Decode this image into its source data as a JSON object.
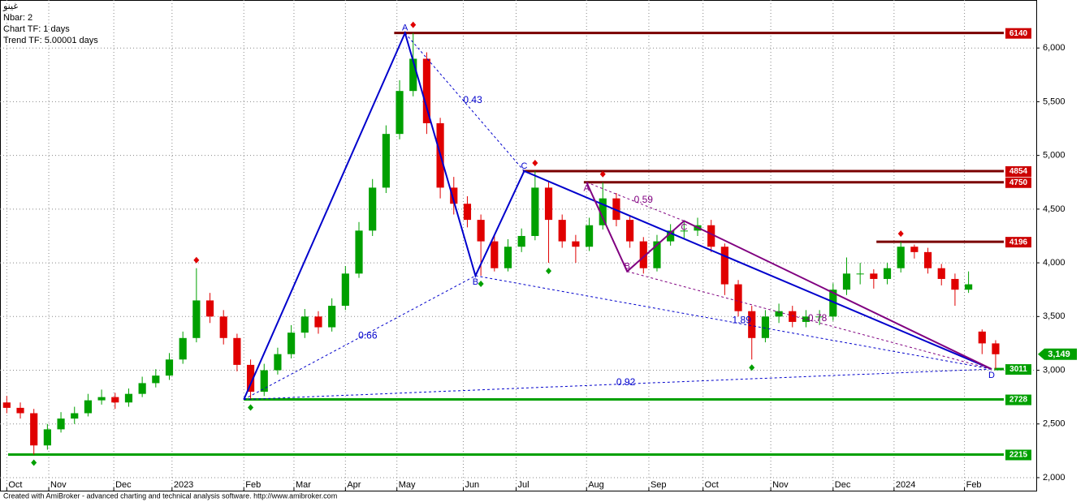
{
  "chart_data": {
    "type": "candlestick",
    "header": [
      "غينو",
      "Nbar: 2",
      "Chart TF: 1 days",
      "Trend TF: 5.00001 days"
    ],
    "footer": "Created with AmiBroker - advanced charting and technical analysis software. http://www.amibroker.com",
    "x": [
      0,
      1,
      2,
      3,
      4,
      5,
      6,
      7,
      8,
      9,
      10,
      11,
      12,
      13,
      14,
      15,
      16,
      17,
      18,
      19,
      20,
      21,
      22,
      23,
      24,
      25,
      26,
      27,
      28,
      29,
      30,
      31,
      32,
      33,
      34,
      35,
      36,
      37,
      38,
      39,
      40,
      41,
      42,
      43,
      44,
      45,
      46,
      47,
      48,
      49,
      50,
      51,
      52,
      53,
      54,
      55,
      56,
      57,
      58,
      59,
      60,
      61,
      62,
      63,
      64,
      65,
      66,
      67,
      68,
      69,
      70,
      71,
      72,
      73
    ],
    "open": [
      2700,
      2650,
      2600,
      2300,
      2450,
      2550,
      2600,
      2720,
      2750,
      2700,
      2780,
      2880,
      2950,
      3100,
      3300,
      3650,
      3500,
      3300,
      3050,
      2800,
      3000,
      3150,
      3350,
      3500,
      3400,
      3600,
      3900,
      4300,
      4700,
      5200,
      5600,
      5900,
      5300,
      4700,
      4550,
      4400,
      4200,
      3950,
      4150,
      4250,
      4700,
      4400,
      4200,
      4150,
      4350,
      4600,
      4400,
      4200,
      3950,
      4200,
      4300,
      4300,
      4350,
      4150,
      3800,
      3550,
      3300,
      3500,
      3550,
      3450,
      3500,
      3500,
      3750,
      3900,
      3900,
      3850,
      3950,
      4150,
      4100,
      3950,
      3850,
      3750,
      3360,
      3250
    ],
    "high": [
      2760,
      2700,
      2640,
      2500,
      2610,
      2660,
      2780,
      2820,
      2790,
      2830,
      2940,
      3010,
      3160,
      3360,
      3950,
      3720,
      3560,
      3340,
      3100,
      3060,
      3210,
      3420,
      3570,
      3550,
      3670,
      3970,
      4380,
      4780,
      5280,
      5700,
      6140,
      5960,
      5350,
      4800,
      4620,
      4450,
      4260,
      4220,
      4320,
      4854,
      4760,
      4450,
      4260,
      4420,
      4750,
      4650,
      4440,
      4240,
      4260,
      4360,
      4380,
      4420,
      4400,
      4180,
      3840,
      3600,
      3560,
      3620,
      3600,
      3560,
      3560,
      3810,
      4050,
      4000,
      3940,
      4000,
      4196,
      4170,
      4140,
      3990,
      3900,
      3920,
      3380,
      3280
    ],
    "low": [
      2600,
      2550,
      2215,
      2260,
      2420,
      2500,
      2570,
      2680,
      2640,
      2660,
      2750,
      2840,
      2910,
      3060,
      3260,
      3440,
      3240,
      2990,
      2728,
      2760,
      2960,
      3110,
      3300,
      3340,
      3360,
      3560,
      3860,
      4250,
      4650,
      5150,
      5550,
      5200,
      4600,
      4450,
      4330,
      3880,
      3920,
      3920,
      4100,
      4210,
      4000,
      4140,
      4000,
      4110,
      4310,
      4340,
      4140,
      3900,
      3920,
      4160,
      4220,
      4250,
      4100,
      3700,
      3500,
      3100,
      3260,
      3440,
      3400,
      3400,
      3420,
      3460,
      3700,
      3800,
      3760,
      3800,
      3910,
      4040,
      3900,
      3790,
      3600,
      3720,
      3150,
      3011
    ],
    "close": [
      2650,
      2600,
      2300,
      2450,
      2550,
      2600,
      2720,
      2750,
      2700,
      2780,
      2880,
      2950,
      3100,
      3300,
      3650,
      3500,
      3300,
      3050,
      2800,
      3000,
      3150,
      3350,
      3500,
      3400,
      3600,
      3900,
      4300,
      4700,
      5200,
      5600,
      5900,
      5300,
      4700,
      4550,
      4400,
      4200,
      3950,
      4150,
      4250,
      4700,
      4400,
      4200,
      4150,
      4350,
      4600,
      4400,
      4200,
      3950,
      4200,
      4300,
      4300,
      4350,
      4150,
      3800,
      3550,
      3300,
      3500,
      3550,
      3450,
      3500,
      3500,
      3750,
      3900,
      3900,
      3850,
      3950,
      4150,
      4100,
      3950,
      3850,
      3750,
      3800,
      3250,
      3149
    ],
    "up_color": "#00a000",
    "down_color": "#e00000",
    "xlim": [
      -0.5,
      76
    ],
    "ylim": [
      1879,
      6447
    ],
    "xticks": [
      {
        "value": 0,
        "label": "Oct"
      },
      {
        "value": 3.1,
        "label": "Nov"
      },
      {
        "value": 7.9,
        "label": "Dec"
      },
      {
        "value": 12.2,
        "label": "2023"
      },
      {
        "value": 17.5,
        "label": "Feb"
      },
      {
        "value": 21.2,
        "label": "Mar"
      },
      {
        "value": 25,
        "label": "Apr"
      },
      {
        "value": 28.8,
        "label": "May"
      },
      {
        "value": 33.7,
        "label": "Jun"
      },
      {
        "value": 37.6,
        "label": "Jul"
      },
      {
        "value": 42.8,
        "label": "Aug"
      },
      {
        "value": 47.4,
        "label": "Sep"
      },
      {
        "value": 51.4,
        "label": "Oct"
      },
      {
        "value": 56.4,
        "label": "Nov"
      },
      {
        "value": 61,
        "label": "Dec"
      },
      {
        "value": 65.5,
        "label": "2024"
      },
      {
        "value": 70.7,
        "label": "Feb"
      }
    ],
    "yticks": [
      {
        "value": 2000,
        "label": "2,000"
      },
      {
        "value": 2500,
        "label": "2,500"
      },
      {
        "value": 3000,
        "label": "3,000"
      },
      {
        "value": 3500,
        "label": "3,500"
      },
      {
        "value": 4000,
        "label": "4,000"
      },
      {
        "value": 4500,
        "label": "4,500"
      },
      {
        "value": 5000,
        "label": "5,000"
      },
      {
        "value": 5500,
        "label": "5,500"
      },
      {
        "value": 6000,
        "label": "6,000"
      }
    ],
    "grid": true,
    "levels": [
      {
        "value": 6140,
        "start": 28.6,
        "color": "#7a0000",
        "label_color": "#cc0000"
      },
      {
        "value": 4854,
        "start": 38.1,
        "color": "#7a0000",
        "label_color": "#cc0000"
      },
      {
        "value": 4750,
        "start": 42.6,
        "color": "#7a0000",
        "label_color": "#cc0000"
      },
      {
        "value": 4196,
        "start": 64.2,
        "color": "#7a0000",
        "label_color": "#cc0000"
      },
      {
        "value": 3011,
        "start": 72.9,
        "color": "#00a000",
        "label_color": "#00a000"
      },
      {
        "value": 2728,
        "start": 17.5,
        "color": "#00a000",
        "label_color": "#00a000"
      },
      {
        "value": 2215,
        "start": 0.1,
        "color": "#00a000",
        "label_color": "#00a000"
      }
    ],
    "last_price": {
      "value": 3149,
      "label": "3,149",
      "color": "#00a000"
    },
    "pivot_highs": {
      "x": [
        14,
        30,
        39,
        44,
        66
      ],
      "y": [
        3950,
        6140,
        4854,
        4750,
        4196
      ],
      "color": "#e00000"
    },
    "pivot_lows": {
      "x": [
        2,
        18,
        35,
        40,
        55
      ],
      "y": [
        2215,
        2728,
        3880,
        4000,
        3100
      ],
      "color": "#00a000"
    },
    "patterns": [
      {
        "color": "#0000cc",
        "points": [
          {
            "x": 17.5,
            "y": 2728
          },
          {
            "x": 29.4,
            "y": 6140,
            "label": "A"
          },
          {
            "x": 34.6,
            "y": 3880,
            "label": "B"
          },
          {
            "x": 38.2,
            "y": 4854,
            "label": "C"
          },
          {
            "x": 72.7,
            "y": 3011,
            "label": "D"
          }
        ],
        "ratios": [
          0.66,
          0.43,
          0.92,
          1.89
        ]
      },
      {
        "color": "#800080",
        "points": [
          {
            "x": 42.8,
            "y": 4750,
            "label": "A"
          },
          {
            "x": 45.8,
            "y": 3920,
            "label": "B"
          },
          {
            "x": 50,
            "y": 4390,
            "label": "C"
          },
          {
            "x": 72.7,
            "y": 3011
          }
        ],
        "ratios": [
          0.59,
          0.78
        ]
      }
    ]
  }
}
